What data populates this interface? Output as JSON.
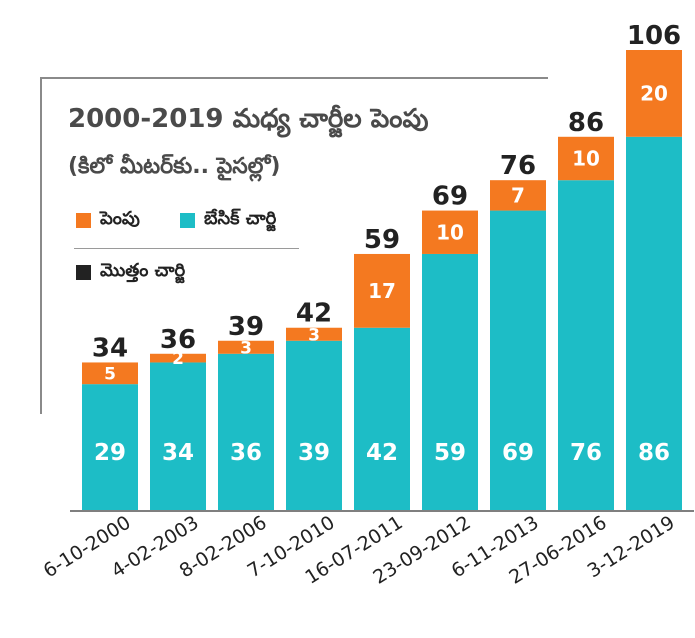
{
  "chart_data": {
    "type": "bar",
    "stacked": true,
    "title": "2000-2019 మధ్య చార్జీల పెంపు",
    "subtitle": "(కిలో మీటర్‌కు.. పైసల్లో)",
    "categories": [
      "6-10-2000",
      "4-02-2003",
      "8-02-2006",
      "7-10-2010",
      "16-07-2011",
      "23-09-2012",
      "6-11-2013",
      "27-06-2016",
      "3-12-2019"
    ],
    "series": [
      {
        "name": "బేసిక్ చార్జి",
        "color": "#1dbdc6",
        "values": [
          29,
          34,
          36,
          39,
          42,
          59,
          69,
          76,
          86
        ]
      },
      {
        "name": "పెంపు",
        "color": "#f47920",
        "values": [
          5,
          2,
          3,
          3,
          17,
          10,
          7,
          10,
          20
        ]
      }
    ],
    "totals": {
      "name": "మొత్తం చార్జి",
      "color": "#222222",
      "values": [
        34,
        36,
        39,
        42,
        59,
        69,
        76,
        86,
        106
      ]
    },
    "ylim": [
      0,
      106
    ],
    "grid": false,
    "legend_position": "top-left"
  }
}
